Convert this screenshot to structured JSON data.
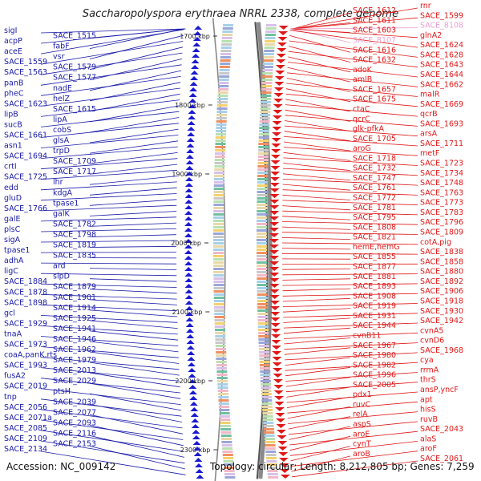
{
  "title": "Saccharopolyspora erythraea NRRL 2338, complete genome",
  "footer": {
    "accession": "Accession: NC_009142",
    "summary": "Topology: circular; Length: 8,212,805 bp; Genes: 7,259"
  },
  "colors": {
    "left_labels": "#1a1aa8",
    "right_labels": "#e01818",
    "pink_labels": "#e9a0d0",
    "backbone": "#8a8a8a"
  },
  "position_ticks": [
    "1700 kbp",
    "1800 kbp",
    "1900 kbp",
    "2000 kbp",
    "2100 kbp",
    "2200 kbp",
    "2300 kbp"
  ],
  "left_labels": [
    "sigI",
    "SACE_1515",
    "acpP",
    "fabF",
    "aceE",
    "vsr",
    "SACE_1559",
    "SACE_1579",
    "SACE_1563",
    "SACE_1577",
    "panB",
    "nadE",
    "pheC",
    "helZ",
    "SACE_1623",
    "SACE_1615",
    "lipB",
    "lipA",
    "sucB",
    "cobS",
    "SACE_1661",
    "glsA",
    "asn1",
    "trpD",
    "SACE_1694",
    "SACE_1709",
    "crtI",
    "SACE_1717",
    "SACE_1725",
    "lhr",
    "edd",
    "kdgA",
    "gluD",
    "tpase1",
    "SACE_1766",
    "galK",
    "galE",
    "SACE_1782",
    "plsC",
    "SACE_1798",
    "sigA",
    "SACE_1819",
    "tpase1",
    "SACE_1835",
    "adhA",
    "ard",
    "ligC",
    "slpD",
    "SACE_1884",
    "SACE_1879",
    "SACE_1878",
    "SACE_1901",
    "SACE_1898",
    "SACE_1914",
    "gcl",
    "SACE_1925",
    "SACE_1929",
    "SACE_1941",
    "tnaA",
    "SACE_1946",
    "SACE_1973",
    "SACE_1962",
    "coaA,panK,rts",
    "SACE_1979",
    "SACE_1993",
    "SACE_2013",
    "fusA2",
    "SACE_2029",
    "SACE_2019",
    "ptsH",
    "tnp",
    "SACE_2039",
    "SACE_2056",
    "SACE_2077",
    "SACE_2071a",
    "SACE_2093",
    "SACE_2085",
    "SACE_2116",
    "SACE_2109",
    "SACE_2153",
    "SACE_2134"
  ],
  "right_labels": [
    "rnr",
    "SACE_1612",
    "SACE_1599",
    "SACE_1611",
    "SACE_8108",
    "SACE_1603",
    "glnA2",
    "SACE_8107",
    "SACE_1624",
    "SACE_1616",
    "SACE_1628",
    "SACE_1632",
    "SACE_1643",
    "adoK",
    "SACE_1644",
    "amlB",
    "SACE_1662",
    "SACE_1657",
    "malR",
    "SACE_1675",
    "SACE_1669",
    "ctaC",
    "qcrB",
    "qcrC",
    "SACE_1693",
    "glk-pfkA",
    "arsA",
    "SACE_1705",
    "SACE_1711",
    "aroG",
    "metF",
    "SACE_1718",
    "SACE_1723",
    "SACE_1732",
    "SACE_1734",
    "SACE_1747",
    "SACE_1748",
    "SACE_1761",
    "SACE_1763",
    "SACE_1772",
    "SACE_1773",
    "SACE_1781",
    "SACE_1783",
    "SACE_1795",
    "SACE_1796",
    "SACE_1808",
    "SACE_1809",
    "SACE_1821",
    "cotA,pig",
    "hemE,hemG",
    "SACE_1838",
    "SACE_1855",
    "SACE_1858",
    "SACE_1877",
    "SACE_1880",
    "SACE_1881",
    "SACE_1892",
    "SACE_1893",
    "SACE_1906",
    "SACE_1908",
    "SACE_1918",
    "SACE_1919",
    "SACE_1930",
    "SACE_1931",
    "SACE_1942",
    "SACE_1944",
    "cvnA5",
    "cvnB11",
    "cvnD6",
    "SACE_1967",
    "SACE_1968",
    "SACE_1980",
    "cya",
    "SACE_1982",
    "rrmA",
    "SACE_1996",
    "thrS",
    "SACE_2005",
    "ansP,yncF",
    "pdx1",
    "apt",
    "ruvC",
    "hisS",
    "relA",
    "ruvB",
    "aspS",
    "SACE_2043",
    "aroE",
    "alaS",
    "cynT",
    "aroF",
    "aroB",
    "SACE_2061"
  ]
}
